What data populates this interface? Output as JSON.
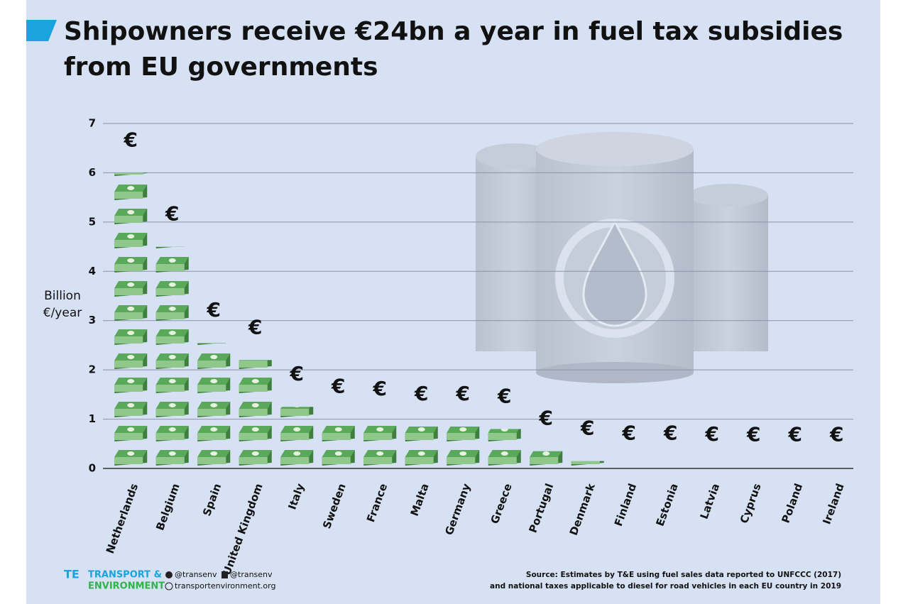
{
  "chart_data": {
    "type": "pictogram_bar",
    "title_line1": "Shipowners receive €24bn a year in fuel tax subsidies",
    "title_line2": "from EU governments",
    "y_label_line1": "Billion",
    "y_label_line2": "€/year",
    "marker_symbol": "€",
    "categories": [
      "Netherlands",
      "Belgium",
      "Spain",
      "United Kingdom",
      "Italy",
      "Sweden",
      "France",
      "Malta",
      "Germany",
      "Greece",
      "Portugal",
      "Denmark",
      "Finland",
      "Estonia",
      "Latvia",
      "Cyprus",
      "Poland",
      "Ireland"
    ],
    "values": [
      6.0,
      4.5,
      2.55,
      2.2,
      1.25,
      1.0,
      0.95,
      0.85,
      0.85,
      0.8,
      0.35,
      0.15,
      0.05,
      0.05,
      0.03,
      0.02,
      0.02,
      0.02
    ],
    "color": "#5aa85a",
    "ylim": [
      0,
      7
    ],
    "yticks": [
      0,
      1,
      2,
      3,
      4,
      5,
      6,
      7
    ],
    "grid": true
  },
  "footer": {
    "logo_line1": "TRANSPORT &",
    "logo_line2": "ENVIRONMENT",
    "twitter": "@transenv",
    "facebook": "@transenv",
    "website": "transportenvironment.org",
    "source_line1": "Source: Estimates by T&E using fuel sales data reported to UNFCCC (2017)",
    "source_line2": "and national taxes applicable to diesel for road vehicles in each EU country in 2019"
  }
}
